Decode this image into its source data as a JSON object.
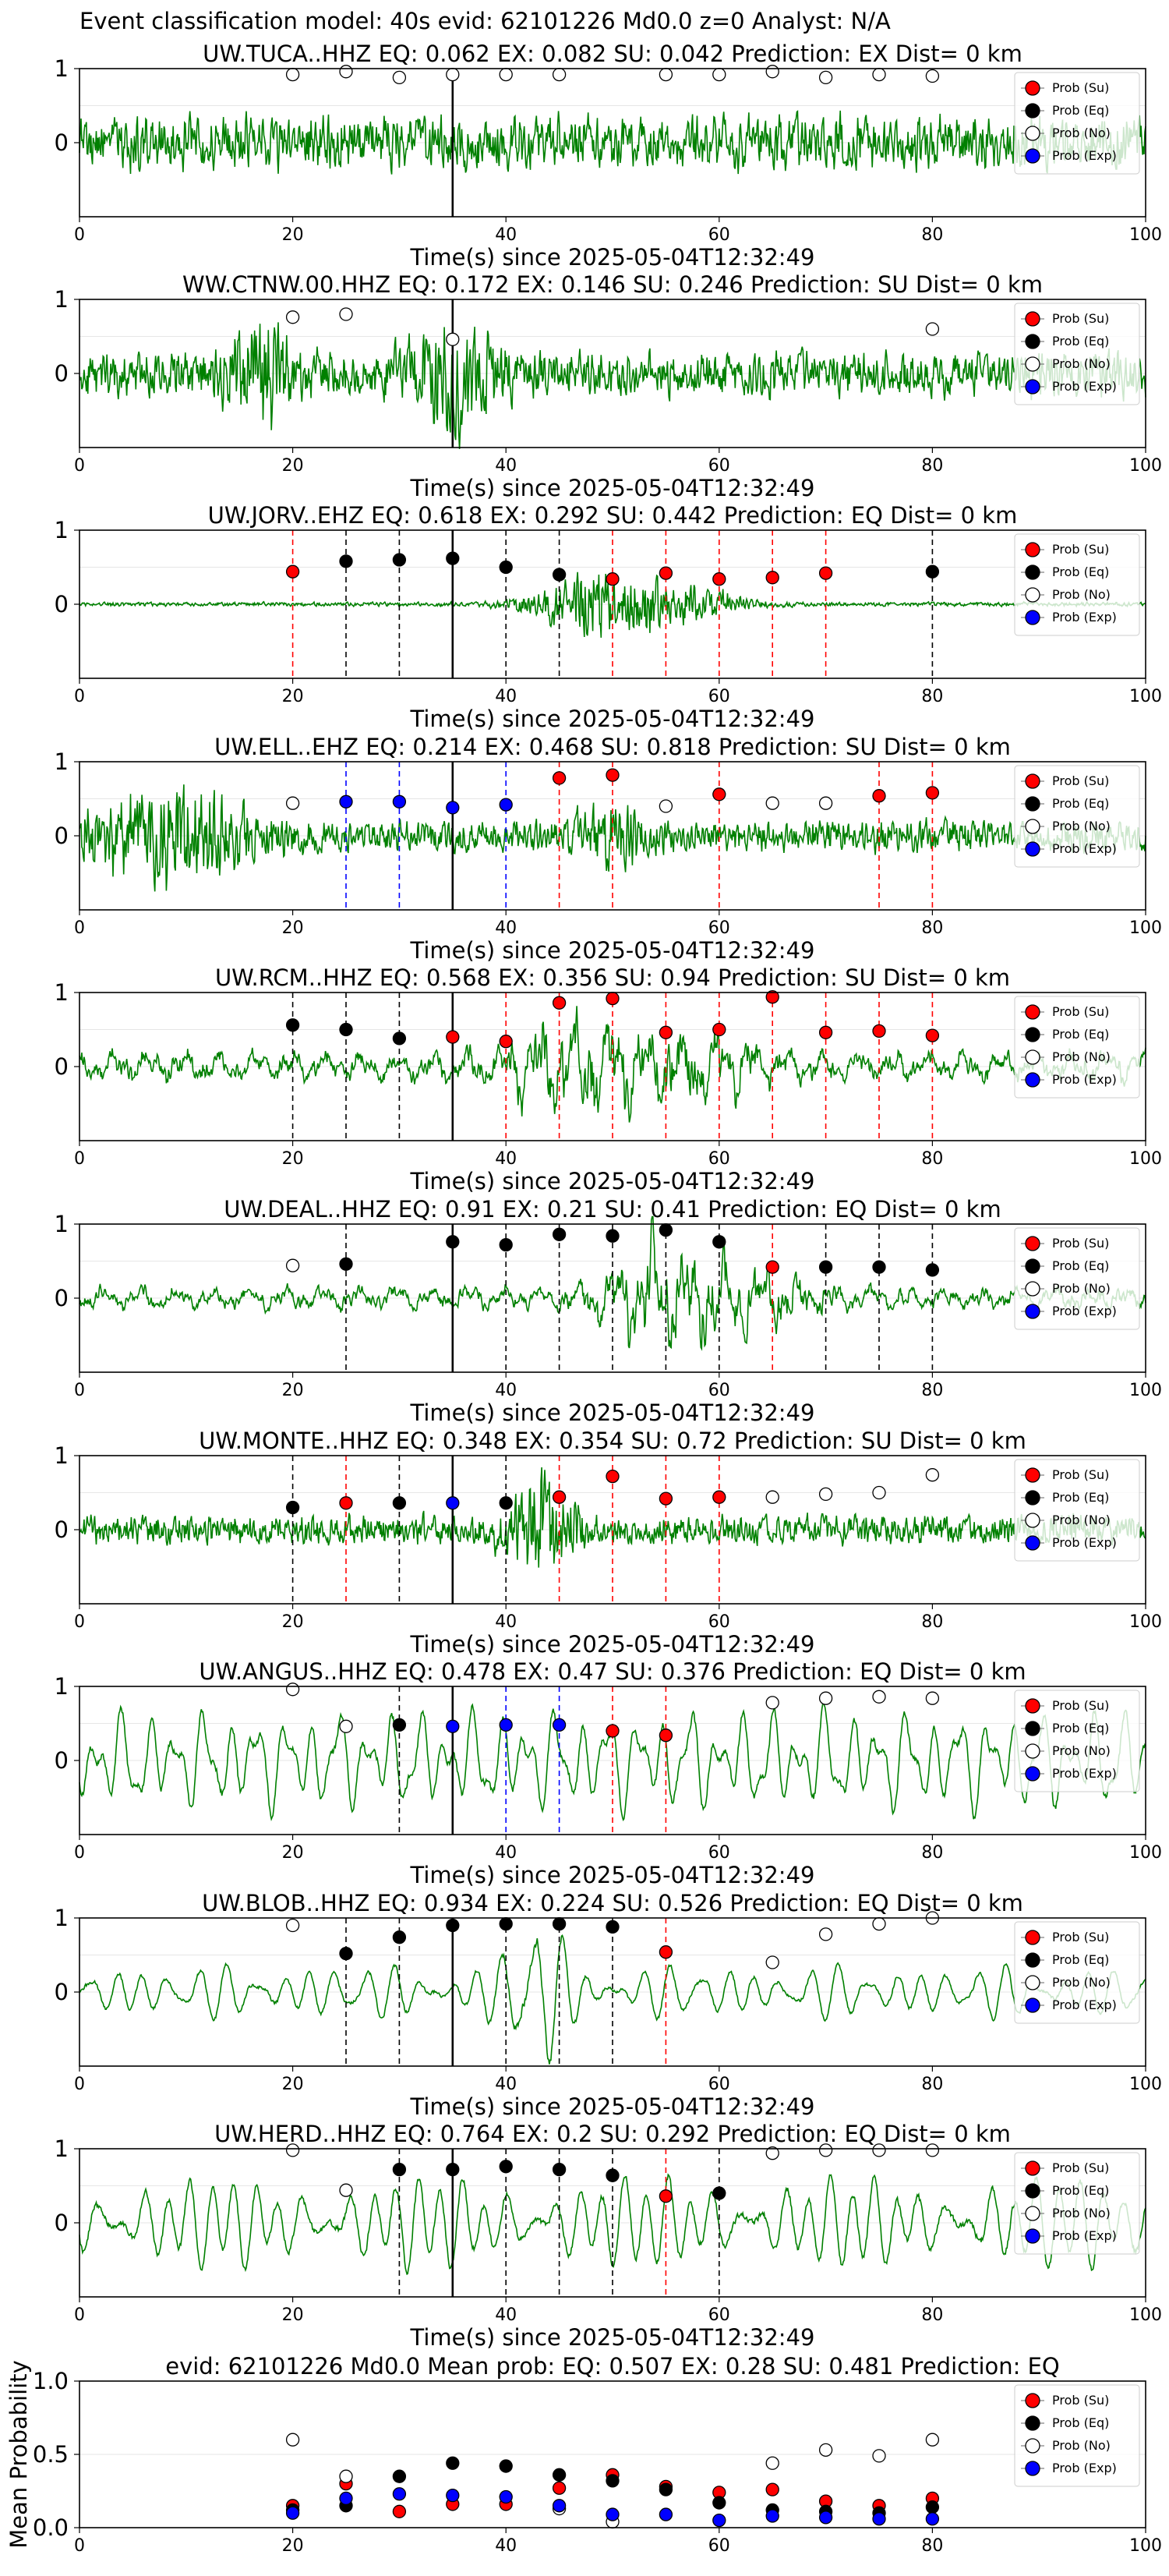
{
  "figure": {
    "title": "Event classification model: 40s evid: 62101226 Md0.0 z=0 Analyst: N/A"
  },
  "legend": {
    "su": "Prob (Su)",
    "eq": "Prob (Eq)",
    "no": "Prob (No)",
    "exp": "Prob (Exp)"
  },
  "colors": {
    "waveform": "#008000",
    "su": "#ff0000",
    "eq": "#000000",
    "no": "#ffffff",
    "exp": "#0000ff",
    "origin_line": "#000000"
  },
  "chart_data": [
    {
      "type": "line",
      "title": "UW.TUCA..HHZ   EQ: 0.062  EX: 0.082  SU: 0.042   Prediction: EX    Dist= 0 km",
      "xlabel": "Time(s) since 2025-05-04T12:32:49",
      "xlim": [
        0,
        100
      ],
      "xticks": [
        "0",
        "20",
        "40",
        "60",
        "80",
        "100"
      ],
      "ylim": [
        -1,
        1
      ],
      "yticks": [
        "1",
        "0"
      ],
      "origin_time": 35,
      "amplitude": 0.55,
      "style": "noise",
      "seed": 11,
      "bursts": [],
      "points": [
        {
          "t": 20,
          "cls": "no",
          "p": 0.92
        },
        {
          "t": 25,
          "cls": "no",
          "p": 0.96
        },
        {
          "t": 30,
          "cls": "no",
          "p": 0.88
        },
        {
          "t": 35,
          "cls": "no",
          "p": 0.92
        },
        {
          "t": 40,
          "cls": "no",
          "p": 0.92
        },
        {
          "t": 45,
          "cls": "no",
          "p": 0.92
        },
        {
          "t": 55,
          "cls": "no",
          "p": 0.92
        },
        {
          "t": 60,
          "cls": "no",
          "p": 0.92
        },
        {
          "t": 65,
          "cls": "no",
          "p": 0.96
        },
        {
          "t": 70,
          "cls": "no",
          "p": 0.88
        },
        {
          "t": 75,
          "cls": "no",
          "p": 0.92
        },
        {
          "t": 80,
          "cls": "no",
          "p": 0.9
        }
      ]
    },
    {
      "type": "line",
      "title": "WW.CTNW.00.HHZ   EQ: 0.172  EX: 0.146  SU: 0.246   Prediction: SU    Dist= 0 km",
      "xlabel": "Time(s) since 2025-05-04T12:32:49",
      "xlim": [
        0,
        100
      ],
      "xticks": [
        "0",
        "20",
        "40",
        "60",
        "80",
        "100"
      ],
      "ylim": [
        -1,
        1
      ],
      "yticks": [
        "1",
        "0"
      ],
      "origin_time": 35,
      "amplitude": 0.45,
      "style": "noise",
      "seed": 23,
      "bursts": [
        {
          "t": 17,
          "w": 3,
          "a": 1.8
        },
        {
          "t": 35,
          "w": 4,
          "a": 1.8
        }
      ],
      "points": [
        {
          "t": 20,
          "cls": "no",
          "p": 0.76
        },
        {
          "t": 25,
          "cls": "no",
          "p": 0.8
        },
        {
          "t": 35,
          "cls": "no",
          "p": 0.46
        },
        {
          "t": 80,
          "cls": "no",
          "p": 0.6
        }
      ]
    },
    {
      "type": "line",
      "title": "UW.JORV..EHZ   EQ: 0.618  EX: 0.292  SU: 0.442   Prediction: EQ    Dist= 0 km",
      "xlabel": "Time(s) since 2025-05-04T12:32:49",
      "xlim": [
        0,
        100
      ],
      "xticks": [
        "0",
        "20",
        "40",
        "60",
        "80",
        "100"
      ],
      "ylim": [
        -1,
        1
      ],
      "yticks": [
        "1",
        "0"
      ],
      "origin_time": 35,
      "amplitude": 0.04,
      "style": "noise",
      "seed": 37,
      "bursts": [
        {
          "t": 49,
          "w": 6,
          "a": 18
        },
        {
          "t": 58,
          "w": 5,
          "a": 7
        }
      ],
      "points": [
        {
          "t": 20,
          "cls": "su",
          "p": 0.44
        },
        {
          "t": 25,
          "cls": "eq",
          "p": 0.58
        },
        {
          "t": 30,
          "cls": "eq",
          "p": 0.6
        },
        {
          "t": 35,
          "cls": "eq",
          "p": 0.62
        },
        {
          "t": 40,
          "cls": "eq",
          "p": 0.5
        },
        {
          "t": 45,
          "cls": "eq",
          "p": 0.4
        },
        {
          "t": 50,
          "cls": "su",
          "p": 0.34
        },
        {
          "t": 55,
          "cls": "su",
          "p": 0.42
        },
        {
          "t": 60,
          "cls": "su",
          "p": 0.34
        },
        {
          "t": 65,
          "cls": "su",
          "p": 0.36
        },
        {
          "t": 70,
          "cls": "su",
          "p": 0.42
        },
        {
          "t": 80,
          "cls": "eq",
          "p": 0.44
        }
      ]
    },
    {
      "type": "line",
      "title": "UW.ELL..EHZ   EQ: 0.214  EX: 0.468  SU: 0.818   Prediction: SU    Dist= 0 km",
      "xlabel": "Time(s) since 2025-05-04T12:32:49",
      "xlim": [
        0,
        100
      ],
      "xticks": [
        "0",
        "20",
        "40",
        "60",
        "80",
        "100"
      ],
      "ylim": [
        -1,
        1
      ],
      "yticks": [
        "1",
        "0"
      ],
      "origin_time": 35,
      "amplitude": 0.32,
      "style": "noise",
      "seed": 41,
      "bursts": [
        {
          "t": 8,
          "w": 8,
          "a": 2.4
        },
        {
          "t": 50,
          "w": 3,
          "a": 1.4
        }
      ],
      "points": [
        {
          "t": 20,
          "cls": "no",
          "p": 0.44
        },
        {
          "t": 25,
          "cls": "exp",
          "p": 0.46
        },
        {
          "t": 30,
          "cls": "exp",
          "p": 0.46
        },
        {
          "t": 35,
          "cls": "exp",
          "p": 0.38
        },
        {
          "t": 40,
          "cls": "exp",
          "p": 0.42
        },
        {
          "t": 45,
          "cls": "su",
          "p": 0.78
        },
        {
          "t": 50,
          "cls": "su",
          "p": 0.82
        },
        {
          "t": 55,
          "cls": "no",
          "p": 0.4
        },
        {
          "t": 60,
          "cls": "su",
          "p": 0.56
        },
        {
          "t": 65,
          "cls": "no",
          "p": 0.44
        },
        {
          "t": 70,
          "cls": "no",
          "p": 0.44
        },
        {
          "t": 75,
          "cls": "su",
          "p": 0.54
        },
        {
          "t": 80,
          "cls": "su",
          "p": 0.58
        }
      ]
    },
    {
      "type": "line",
      "title": "UW.RCM..HHZ   EQ: 0.568  EX: 0.356  SU: 0.94   Prediction: SU    Dist= 0 km",
      "xlabel": "Time(s) since 2025-05-04T12:32:49",
      "xlim": [
        0,
        100
      ],
      "xticks": [
        "0",
        "20",
        "40",
        "60",
        "80",
        "100"
      ],
      "ylim": [
        -1,
        1
      ],
      "yticks": [
        "1",
        "0"
      ],
      "origin_time": 35,
      "amplitude": 0.3,
      "style": "wave",
      "seed": 53,
      "bursts": [
        {
          "t": 46,
          "w": 6,
          "a": 2.4
        },
        {
          "t": 57,
          "w": 6,
          "a": 2.0
        }
      ],
      "points": [
        {
          "t": 20,
          "cls": "eq",
          "p": 0.56
        },
        {
          "t": 25,
          "cls": "eq",
          "p": 0.5
        },
        {
          "t": 30,
          "cls": "eq",
          "p": 0.38
        },
        {
          "t": 35,
          "cls": "su",
          "p": 0.4
        },
        {
          "t": 40,
          "cls": "su",
          "p": 0.34
        },
        {
          "t": 45,
          "cls": "su",
          "p": 0.86
        },
        {
          "t": 50,
          "cls": "su",
          "p": 0.92
        },
        {
          "t": 55,
          "cls": "su",
          "p": 0.46
        },
        {
          "t": 60,
          "cls": "su",
          "p": 0.5
        },
        {
          "t": 65,
          "cls": "su",
          "p": 0.94
        },
        {
          "t": 70,
          "cls": "su",
          "p": 0.46
        },
        {
          "t": 75,
          "cls": "su",
          "p": 0.48
        },
        {
          "t": 80,
          "cls": "su",
          "p": 0.42
        }
      ]
    },
    {
      "type": "line",
      "title": "UW.DEAL..HHZ   EQ: 0.91  EX: 0.21  SU: 0.41   Prediction: EQ    Dist= 0 km",
      "xlabel": "Time(s) since 2025-05-04T12:32:49",
      "xlim": [
        0,
        100
      ],
      "xticks": [
        "0",
        "20",
        "40",
        "60",
        "80",
        "100"
      ],
      "ylim": [
        -1,
        1
      ],
      "yticks": [
        "1",
        "0"
      ],
      "origin_time": 35,
      "amplitude": 0.22,
      "style": "wave",
      "seed": 67,
      "bursts": [
        {
          "t": 54,
          "w": 5,
          "a": 4.0
        },
        {
          "t": 62,
          "w": 6,
          "a": 2.2
        }
      ],
      "points": [
        {
          "t": 20,
          "cls": "no",
          "p": 0.44
        },
        {
          "t": 25,
          "cls": "eq",
          "p": 0.46
        },
        {
          "t": 35,
          "cls": "eq",
          "p": 0.76
        },
        {
          "t": 40,
          "cls": "eq",
          "p": 0.72
        },
        {
          "t": 45,
          "cls": "eq",
          "p": 0.86
        },
        {
          "t": 50,
          "cls": "eq",
          "p": 0.84
        },
        {
          "t": 55,
          "cls": "eq",
          "p": 0.92
        },
        {
          "t": 60,
          "cls": "eq",
          "p": 0.76
        },
        {
          "t": 65,
          "cls": "su",
          "p": 0.42
        },
        {
          "t": 70,
          "cls": "eq",
          "p": 0.42
        },
        {
          "t": 75,
          "cls": "eq",
          "p": 0.42
        },
        {
          "t": 80,
          "cls": "eq",
          "p": 0.38
        }
      ]
    },
    {
      "type": "line",
      "title": "UW.MONTE..HHZ   EQ: 0.348  EX: 0.354  SU: 0.72   Prediction: SU    Dist= 0 km",
      "xlabel": "Time(s) since 2025-05-04T12:32:49",
      "xlim": [
        0,
        100
      ],
      "xticks": [
        "0",
        "20",
        "40",
        "60",
        "80",
        "100"
      ],
      "ylim": [
        -1,
        1
      ],
      "yticks": [
        "1",
        "0"
      ],
      "origin_time": 35,
      "amplitude": 0.3,
      "style": "noise",
      "seed": 79,
      "bursts": [
        {
          "t": 43,
          "w": 3,
          "a": 3.2
        }
      ],
      "points": [
        {
          "t": 20,
          "cls": "eq",
          "p": 0.3
        },
        {
          "t": 25,
          "cls": "su",
          "p": 0.36
        },
        {
          "t": 30,
          "cls": "eq",
          "p": 0.36
        },
        {
          "t": 35,
          "cls": "exp",
          "p": 0.36
        },
        {
          "t": 40,
          "cls": "eq",
          "p": 0.36
        },
        {
          "t": 45,
          "cls": "su",
          "p": 0.44
        },
        {
          "t": 50,
          "cls": "su",
          "p": 0.72
        },
        {
          "t": 55,
          "cls": "su",
          "p": 0.42
        },
        {
          "t": 60,
          "cls": "su",
          "p": 0.44
        },
        {
          "t": 65,
          "cls": "no",
          "p": 0.44
        },
        {
          "t": 70,
          "cls": "no",
          "p": 0.48
        },
        {
          "t": 75,
          "cls": "no",
          "p": 0.5
        },
        {
          "t": 80,
          "cls": "no",
          "p": 0.74
        }
      ]
    },
    {
      "type": "line",
      "title": "UW.ANGUS..HHZ   EQ: 0.478  EX: 0.47  SU: 0.376   Prediction: EQ    Dist= 0 km",
      "xlabel": "Time(s) since 2025-05-04T12:32:49",
      "xlim": [
        0,
        100
      ],
      "xticks": [
        "0",
        "20",
        "40",
        "60",
        "80",
        "100"
      ],
      "ylim": [
        -1,
        1
      ],
      "yticks": [
        "1",
        "0"
      ],
      "origin_time": 35,
      "amplitude": 0.7,
      "style": "smooth",
      "seed": 83,
      "bursts": [],
      "points": [
        {
          "t": 20,
          "cls": "no",
          "p": 0.96
        },
        {
          "t": 25,
          "cls": "no",
          "p": 0.46
        },
        {
          "t": 30,
          "cls": "eq",
          "p": 0.48
        },
        {
          "t": 35,
          "cls": "exp",
          "p": 0.46
        },
        {
          "t": 40,
          "cls": "exp",
          "p": 0.48
        },
        {
          "t": 45,
          "cls": "exp",
          "p": 0.48
        },
        {
          "t": 50,
          "cls": "su",
          "p": 0.4
        },
        {
          "t": 55,
          "cls": "su",
          "p": 0.34
        },
        {
          "t": 65,
          "cls": "no",
          "p": 0.78
        },
        {
          "t": 70,
          "cls": "no",
          "p": 0.84
        },
        {
          "t": 75,
          "cls": "no",
          "p": 0.86
        },
        {
          "t": 80,
          "cls": "no",
          "p": 0.84
        }
      ]
    },
    {
      "type": "line",
      "title": "UW.BLOB..HHZ   EQ: 0.934  EX: 0.224  SU: 0.526   Prediction: EQ    Dist= 0 km",
      "xlabel": "Time(s) since 2025-05-04T12:32:49",
      "xlim": [
        0,
        100
      ],
      "xticks": [
        "0",
        "20",
        "40",
        "60",
        "80",
        "100"
      ],
      "ylim": [
        -1,
        1
      ],
      "yticks": [
        "1",
        "0"
      ],
      "origin_time": 35,
      "amplitude": 0.35,
      "style": "smooth",
      "seed": 97,
      "bursts": [
        {
          "t": 43,
          "w": 3,
          "a": 2.2
        }
      ],
      "points": [
        {
          "t": 20,
          "cls": "no",
          "p": 0.9
        },
        {
          "t": 25,
          "cls": "eq",
          "p": 0.52
        },
        {
          "t": 30,
          "cls": "eq",
          "p": 0.74
        },
        {
          "t": 35,
          "cls": "eq",
          "p": 0.9
        },
        {
          "t": 40,
          "cls": "eq",
          "p": 0.92
        },
        {
          "t": 45,
          "cls": "eq",
          "p": 0.92
        },
        {
          "t": 50,
          "cls": "eq",
          "p": 0.88
        },
        {
          "t": 55,
          "cls": "su",
          "p": 0.54
        },
        {
          "t": 65,
          "cls": "no",
          "p": 0.4
        },
        {
          "t": 70,
          "cls": "no",
          "p": 0.78
        },
        {
          "t": 75,
          "cls": "no",
          "p": 0.92
        },
        {
          "t": 80,
          "cls": "no",
          "p": 1.0
        }
      ]
    },
    {
      "type": "line",
      "title": "UW.HERD..HHZ   EQ: 0.764  EX: 0.2  SU: 0.292   Prediction: EQ    Dist= 0 km",
      "xlabel": "Time(s) since 2025-05-04T12:32:49",
      "xlim": [
        0,
        100
      ],
      "xticks": [
        "0",
        "20",
        "40",
        "60",
        "80",
        "100"
      ],
      "ylim": [
        -1,
        1
      ],
      "yticks": [
        "1",
        "0"
      ],
      "origin_time": 35,
      "amplitude": 0.6,
      "style": "smooth",
      "seed": 101,
      "bursts": [],
      "points": [
        {
          "t": 20,
          "cls": "no",
          "p": 0.98
        },
        {
          "t": 25,
          "cls": "no",
          "p": 0.44
        },
        {
          "t": 30,
          "cls": "eq",
          "p": 0.72
        },
        {
          "t": 35,
          "cls": "eq",
          "p": 0.72
        },
        {
          "t": 40,
          "cls": "eq",
          "p": 0.76
        },
        {
          "t": 45,
          "cls": "eq",
          "p": 0.72
        },
        {
          "t": 50,
          "cls": "eq",
          "p": 0.64
        },
        {
          "t": 55,
          "cls": "su",
          "p": 0.36
        },
        {
          "t": 60,
          "cls": "eq",
          "p": 0.4
        },
        {
          "t": 65,
          "cls": "no",
          "p": 0.94
        },
        {
          "t": 70,
          "cls": "no",
          "p": 0.98
        },
        {
          "t": 75,
          "cls": "no",
          "p": 0.98
        },
        {
          "t": 80,
          "cls": "no",
          "p": 0.98
        }
      ]
    },
    {
      "type": "scatter",
      "title": "evid: 62101226  Md0.0   Mean prob:   EQ: 0.507  EX: 0.28  SU: 0.481   Prediction: EQ",
      "ylabel": "Mean Probability",
      "xlim": [
        0,
        100
      ],
      "xticks": [
        "0",
        "20",
        "40",
        "60",
        "80",
        "100"
      ],
      "ylim": [
        0,
        1
      ],
      "yticks": [
        "1.0",
        "0.5",
        "0.0"
      ],
      "x": [
        20,
        25,
        30,
        35,
        40,
        45,
        50,
        55,
        60,
        65,
        70,
        75,
        80
      ],
      "series": [
        {
          "name": "Prob (Su)",
          "cls": "su",
          "values": [
            0.15,
            0.3,
            0.11,
            0.16,
            0.16,
            0.27,
            0.36,
            0.28,
            0.24,
            0.26,
            0.18,
            0.15,
            0.2
          ]
        },
        {
          "name": "Prob (Eq)",
          "cls": "eq",
          "values": [
            0.12,
            0.15,
            0.35,
            0.44,
            0.42,
            0.36,
            0.32,
            0.26,
            0.17,
            0.12,
            0.11,
            0.1,
            0.14
          ]
        },
        {
          "name": "Prob (No)",
          "cls": "no",
          "values": [
            0.6,
            0.35,
            null,
            null,
            null,
            0.13,
            0.04,
            null,
            null,
            0.44,
            0.53,
            0.49,
            0.6
          ]
        },
        {
          "name": "Prob (Exp)",
          "cls": "exp",
          "values": [
            0.1,
            0.2,
            0.23,
            0.22,
            0.21,
            0.15,
            0.09,
            0.09,
            0.05,
            0.08,
            0.07,
            0.06,
            0.06
          ]
        }
      ]
    }
  ]
}
